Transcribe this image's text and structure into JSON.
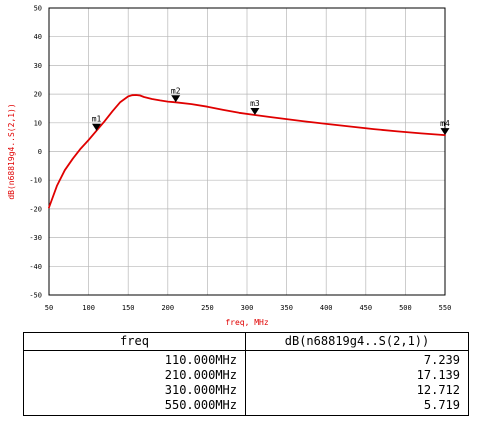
{
  "chart_data": {
    "type": "line",
    "title": "",
    "xlabel": "freq, MHz",
    "ylabel": "dB(n68819g4..S(2,1))",
    "xlim": [
      50,
      550
    ],
    "ylim": [
      -50,
      50
    ],
    "x_ticks": [
      50,
      100,
      150,
      200,
      250,
      300,
      350,
      400,
      450,
      500,
      550
    ],
    "y_ticks": [
      -50,
      -40,
      -30,
      -20,
      -10,
      0,
      10,
      20,
      30,
      40,
      50
    ],
    "grid": true,
    "line_color": "#e00000",
    "series": [
      {
        "x": [
          50,
          60,
          70,
          80,
          90,
          100,
          110,
          120,
          130,
          140,
          150,
          155,
          160,
          165,
          170,
          180,
          190,
          200,
          210,
          230,
          250,
          270,
          290,
          310,
          330,
          350,
          370,
          400,
          430,
          460,
          490,
          520,
          550
        ],
        "y": [
          -19.5,
          -12.0,
          -6.5,
          -2.5,
          1.0,
          4.0,
          7.239,
          10.5,
          14.0,
          17.2,
          19.2,
          19.6,
          19.7,
          19.5,
          19.0,
          18.3,
          17.8,
          17.4,
          17.139,
          16.5,
          15.6,
          14.5,
          13.5,
          12.712,
          12.0,
          11.3,
          10.6,
          9.6,
          8.7,
          7.8,
          7.0,
          6.3,
          5.719
        ]
      }
    ],
    "markers": [
      {
        "label": "m1",
        "x": 110,
        "y": 7.239
      },
      {
        "label": "m2",
        "x": 210,
        "y": 17.139
      },
      {
        "label": "m3",
        "x": 310,
        "y": 12.712
      },
      {
        "label": "m4",
        "x": 550,
        "y": 5.719
      }
    ]
  },
  "table": {
    "headers": [
      "freq",
      "dB(n68819g4..S(2,1))"
    ],
    "rows": [
      [
        "110.000MHz",
        "7.239"
      ],
      [
        "210.000MHz",
        "17.139"
      ],
      [
        "310.000MHz",
        "12.712"
      ],
      [
        "550.000MHz",
        "5.719"
      ]
    ]
  }
}
